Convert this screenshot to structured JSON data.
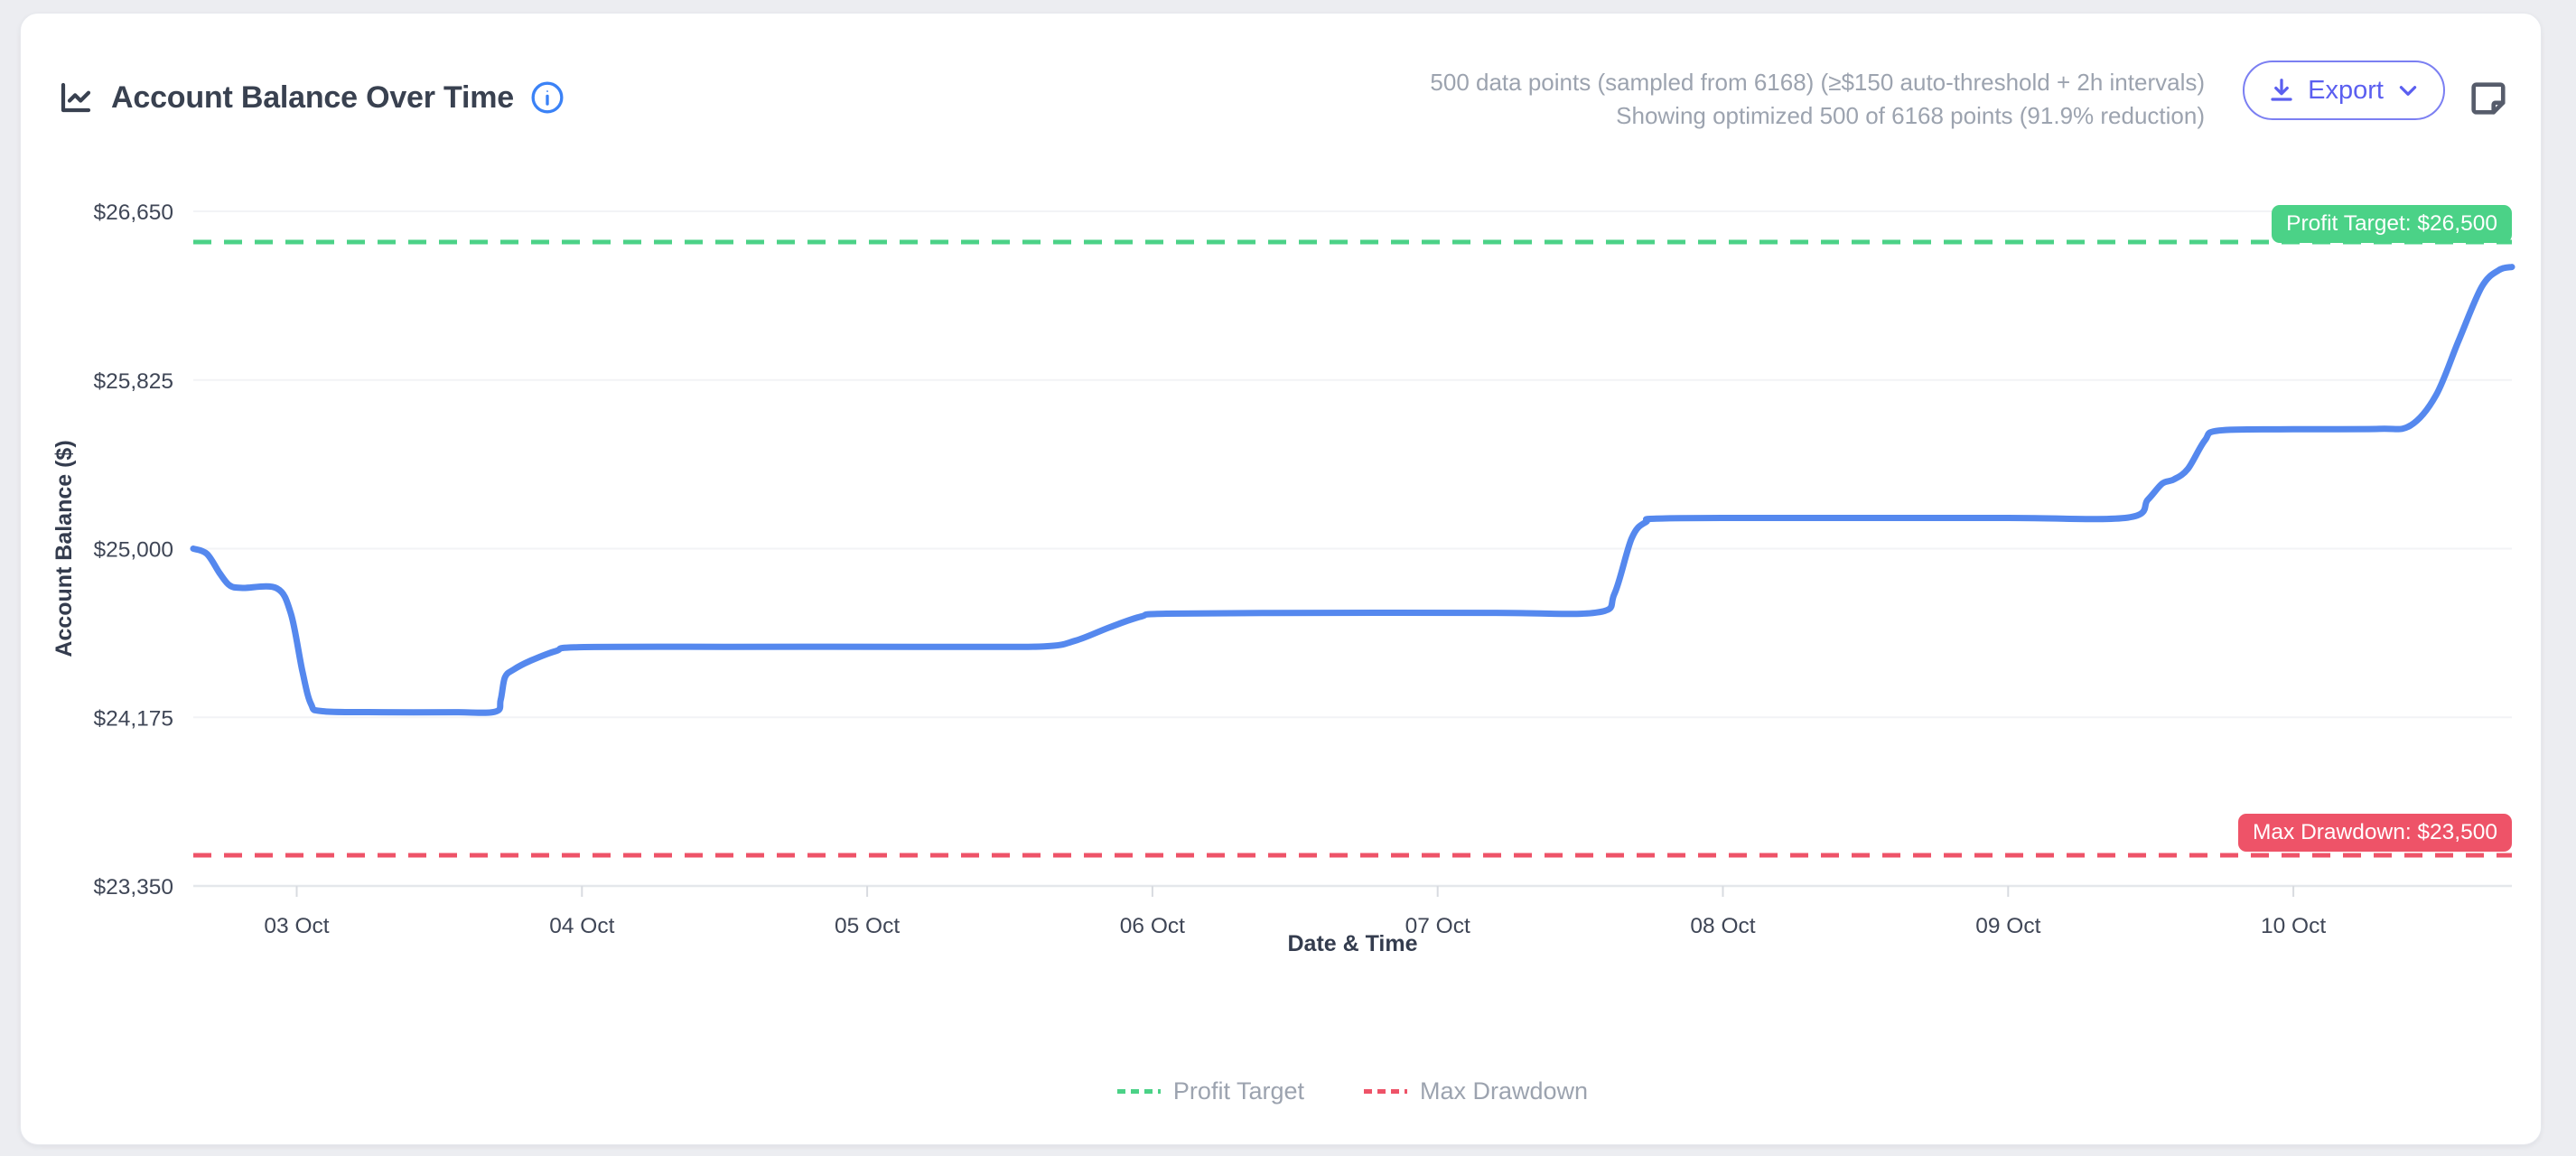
{
  "header": {
    "title": "Account Balance Over Time",
    "meta_line1": "500 data points (sampled from 6168) (≥$150 auto-threshold + 2h intervals)",
    "meta_line2": "Showing optimized 500 of 6168 points (91.9% reduction)",
    "export_label": "Export",
    "icons": [
      "chart-line-icon",
      "info-icon",
      "download-icon",
      "chevron-down-icon",
      "note-icon"
    ]
  },
  "colors": {
    "series_line": "#5588ee",
    "profit_target": "#4bd287",
    "max_drawdown": "#ee5368",
    "grid": "#f2f3f6",
    "axis_line": "#e4e7eb",
    "tick": "#d8dbe0",
    "tick_label": "#3f4656",
    "axis_title": "#343c4e",
    "legend_label": "#9ca3af"
  },
  "chart_data": {
    "type": "line",
    "title": "Account Balance Over Time",
    "xlabel": "Date & Time",
    "ylabel": "Account Balance ($)",
    "ylim": [
      23350,
      26650
    ],
    "y_ticks": [
      {
        "value": 23350,
        "label": "$23,350"
      },
      {
        "value": 24175,
        "label": "$24,175"
      },
      {
        "value": 25000,
        "label": "$25,000"
      },
      {
        "value": 25825,
        "label": "$25,825"
      },
      {
        "value": 26650,
        "label": "$26,650"
      }
    ],
    "x_unit": "days since 03 Oct 00:00",
    "x_range_days": [
      -0.3626,
      7.766
    ],
    "x_ticks": [
      {
        "day": 0,
        "label": "03 Oct"
      },
      {
        "day": 1,
        "label": "04 Oct"
      },
      {
        "day": 2,
        "label": "05 Oct"
      },
      {
        "day": 3,
        "label": "06 Oct"
      },
      {
        "day": 4,
        "label": "07 Oct"
      },
      {
        "day": 5,
        "label": "08 Oct"
      },
      {
        "day": 6,
        "label": "09 Oct"
      },
      {
        "day": 7,
        "label": "10 Oct"
      }
    ],
    "grid": "horizontal-only",
    "legend_position": "bottom-center",
    "reference_lines": [
      {
        "name": "Profit Target",
        "value": 26500,
        "label": "Profit Target: $26,500",
        "style": "dashed"
      },
      {
        "name": "Max Drawdown",
        "value": 23500,
        "label": "Max Drawdown: $23,500",
        "style": "dashed"
      }
    ],
    "series": [
      {
        "name": "Account Balance",
        "points": [
          [
            -0.3626,
            25000
          ],
          [
            -0.315,
            24975
          ],
          [
            -0.27,
            24880
          ],
          [
            -0.235,
            24820
          ],
          [
            -0.19,
            24808
          ],
          [
            -0.07,
            24806
          ],
          [
            -0.02,
            24680
          ],
          [
            0.02,
            24400
          ],
          [
            0.05,
            24240
          ],
          [
            0.09,
            24205
          ],
          [
            0.3,
            24200
          ],
          [
            0.55,
            24200
          ],
          [
            0.695,
            24202
          ],
          [
            0.715,
            24260
          ],
          [
            0.73,
            24370
          ],
          [
            0.76,
            24408
          ],
          [
            0.82,
            24452
          ],
          [
            0.91,
            24500
          ],
          [
            0.99,
            24518
          ],
          [
            1.5,
            24520
          ],
          [
            2.3,
            24520
          ],
          [
            2.62,
            24522
          ],
          [
            2.73,
            24550
          ],
          [
            2.85,
            24615
          ],
          [
            2.96,
            24668
          ],
          [
            3.05,
            24682
          ],
          [
            3.6,
            24686
          ],
          [
            4.2,
            24686
          ],
          [
            4.56,
            24688
          ],
          [
            4.62,
            24780
          ],
          [
            4.68,
            25050
          ],
          [
            4.73,
            25130
          ],
          [
            4.8,
            25148
          ],
          [
            5.4,
            25150
          ],
          [
            6.0,
            25150
          ],
          [
            6.42,
            25152
          ],
          [
            6.49,
            25240
          ],
          [
            6.54,
            25318
          ],
          [
            6.58,
            25338
          ],
          [
            6.63,
            25390
          ],
          [
            6.69,
            25530
          ],
          [
            6.74,
            25578
          ],
          [
            7.0,
            25584
          ],
          [
            7.3,
            25586
          ],
          [
            7.41,
            25602
          ],
          [
            7.5,
            25750
          ],
          [
            7.58,
            26020
          ],
          [
            7.66,
            26280
          ],
          [
            7.72,
            26362
          ],
          [
            7.766,
            26378
          ]
        ]
      }
    ]
  }
}
